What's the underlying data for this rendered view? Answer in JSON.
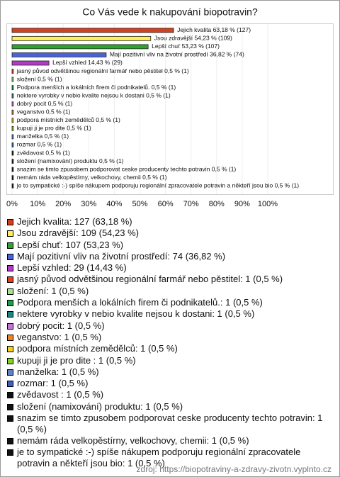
{
  "chart_data": {
    "type": "barh",
    "title": "Co Vás vede k nakupování biopotravin?",
    "categories": [
      "Jejich kvalita: 127 (63,18 %)",
      "Jsou zdravější: 109 (54,23 %)",
      "Lepší chuť: 107 (53,23 %)",
      "Mají pozitivní vliv na životní prostředí: 74 (36,82 %)",
      "Lepší vzhled: 29 (14,43 %)",
      "jasný původ odvětšinou regionální farmář nebo pěstitel: 1 (0,5 %)",
      "složení: 1 (0,5 %)",
      "Podpora menších a lokálních firem či podnikatelů.: 1 (0,5 %)",
      "nektere vyrobky v nebio kvalite nejsou k dostani: 1 (0,5 %)",
      "dobrý pocit: 1 (0,5 %)",
      "veganstvo: 1 (0,5 %)",
      "podpora místních zemědělců: 1 (0,5 %)",
      "kupuji ji je pro dite : 1 (0,5 %)",
      "manželka: 1 (0,5 %)",
      "rozmar: 1 (0,5 %)",
      "zvědavost : 1 (0,5 %)",
      "složení (namixování) produktu: 1 (0,5 %)",
      "snazim se timto zpusobem podporovat ceske producenty techto potravin: 1 (0,5 %)",
      "nemám ráda velkopěstírny, velkochovy, chemii: 1 (0,5 %)",
      "je to sympatické :-) spíše nákupem podporuju regionální zpracovatele potravin a někteří jsou bio: 1 (0,5 %)"
    ],
    "values": [
      63.18,
      54.23,
      53.23,
      36.82,
      14.43,
      0.5,
      0.5,
      0.5,
      0.5,
      0.5,
      0.5,
      0.5,
      0.5,
      0.5,
      0.5,
      0.5,
      0.5,
      0.5,
      0.5,
      0.5
    ],
    "value_labels": [
      "Jejich kvalita 63,18 % (127)",
      "Jsou zdravější 54,23 % (109)",
      "Lepší chuť 53,23 % (107)",
      "Mají pozitivní vliv na životní prostředí 36,82 % (74)",
      "Lepší vzhled 14,43 % (29)",
      "jasný původ odvětšinou regionální farmář nebo pěstitel 0,5 % (1)",
      "složení 0,5 % (1)",
      "Podpora menších a lokálních firem či podnikatelů. 0,5 % (1)",
      "nektere vyrobky v nebio kvalite nejsou k dostani 0,5 % (1)",
      "dobrý pocit 0,5 % (1)",
      "veganstvo 0,5 % (1)",
      "podpora místních zemědělců 0,5 % (1)",
      "kupuji ji je pro dite  0,5 % (1)",
      "manželka 0,5 % (1)",
      "rozmar 0,5 % (1)",
      "zvědavost  0,5 % (1)",
      "složení (namixování) produktu 0,5 % (1)",
      "snazim se timto zpusobem podporovat ceske producenty techto potravin 0,5 % (1)",
      "nemám ráda velkopěstírny, velkochovy, chemii 0,5 % (1)",
      "je to sympatické :-) spíše nákupem podporuju regionální zpracovatele potravin a někteří jsou bio 0,5 % (1)"
    ],
    "colors": [
      "#d2401e",
      "#ffef5c",
      "#2fa32f",
      "#4a62d6",
      "#b03cc4",
      "#e0421a",
      "#a6e48a",
      "#1f9e48",
      "#208484",
      "#c474d4",
      "#f0822a",
      "#f2d222",
      "#84d222",
      "#6482c2",
      "#3e5ec0",
      "#111111",
      "#111111",
      "#111111",
      "#111111",
      "#111111"
    ],
    "xlim": [
      0,
      100
    ],
    "xticks": [
      {
        "value": 0,
        "label": "0%"
      },
      {
        "value": 10,
        "label": "10%"
      },
      {
        "value": 20,
        "label": "20%"
      },
      {
        "value": 30,
        "label": "30%"
      },
      {
        "value": 40,
        "label": "40%"
      },
      {
        "value": 50,
        "label": "50%"
      },
      {
        "value": 60,
        "label": "60%"
      },
      {
        "value": 70,
        "label": "70%"
      },
      {
        "value": 80,
        "label": "80%"
      },
      {
        "value": 90,
        "label": "90%"
      },
      {
        "value": 100,
        "label": "100%"
      }
    ],
    "source": "zdroj: https://biopotraviny-a-zdravy-zivotn.vyplnto.cz"
  }
}
